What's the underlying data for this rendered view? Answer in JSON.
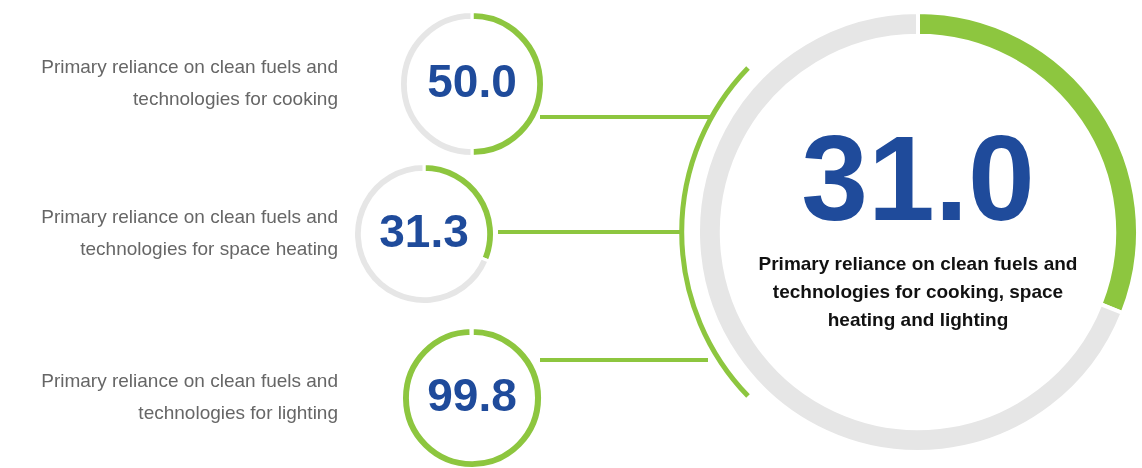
{
  "chart_data": [
    {
      "type": "donut",
      "title": "Primary reliance on clean fuels and technologies for cooking",
      "categories": [
        null,
        null
      ],
      "values": [
        50.0,
        50.0
      ],
      "colors": [
        "#8dc63f",
        "#e6e6e6"
      ],
      "value_labels": [
        "50.0",
        null
      ],
      "legend": false
    },
    {
      "type": "donut",
      "title": "Primary reliance on clean fuels and technologies for space heating",
      "categories": [
        null,
        null
      ],
      "values": [
        31.3,
        68.7
      ],
      "colors": [
        "#8dc63f",
        "#e6e6e6"
      ],
      "value_labels": [
        "31.3",
        null
      ],
      "legend": false
    },
    {
      "type": "donut",
      "title": "Primary reliance on clean fuels and technologies for lighting",
      "categories": [
        null,
        null
      ],
      "values": [
        99.8,
        0.2
      ],
      "colors": [
        "#8dc63f",
        "#e6e6e6"
      ],
      "value_labels": [
        "99.8",
        null
      ],
      "legend": false
    },
    {
      "type": "donut",
      "title": "Primary reliance on clean fuels and technologies for cooking, space heating and lighting",
      "categories": [
        null,
        null
      ],
      "values": [
        31.0,
        69.0
      ],
      "colors": [
        "#8dc63f",
        "#e6e6e6"
      ],
      "value_labels": [
        "31.0",
        null
      ],
      "legend": false
    }
  ]
}
